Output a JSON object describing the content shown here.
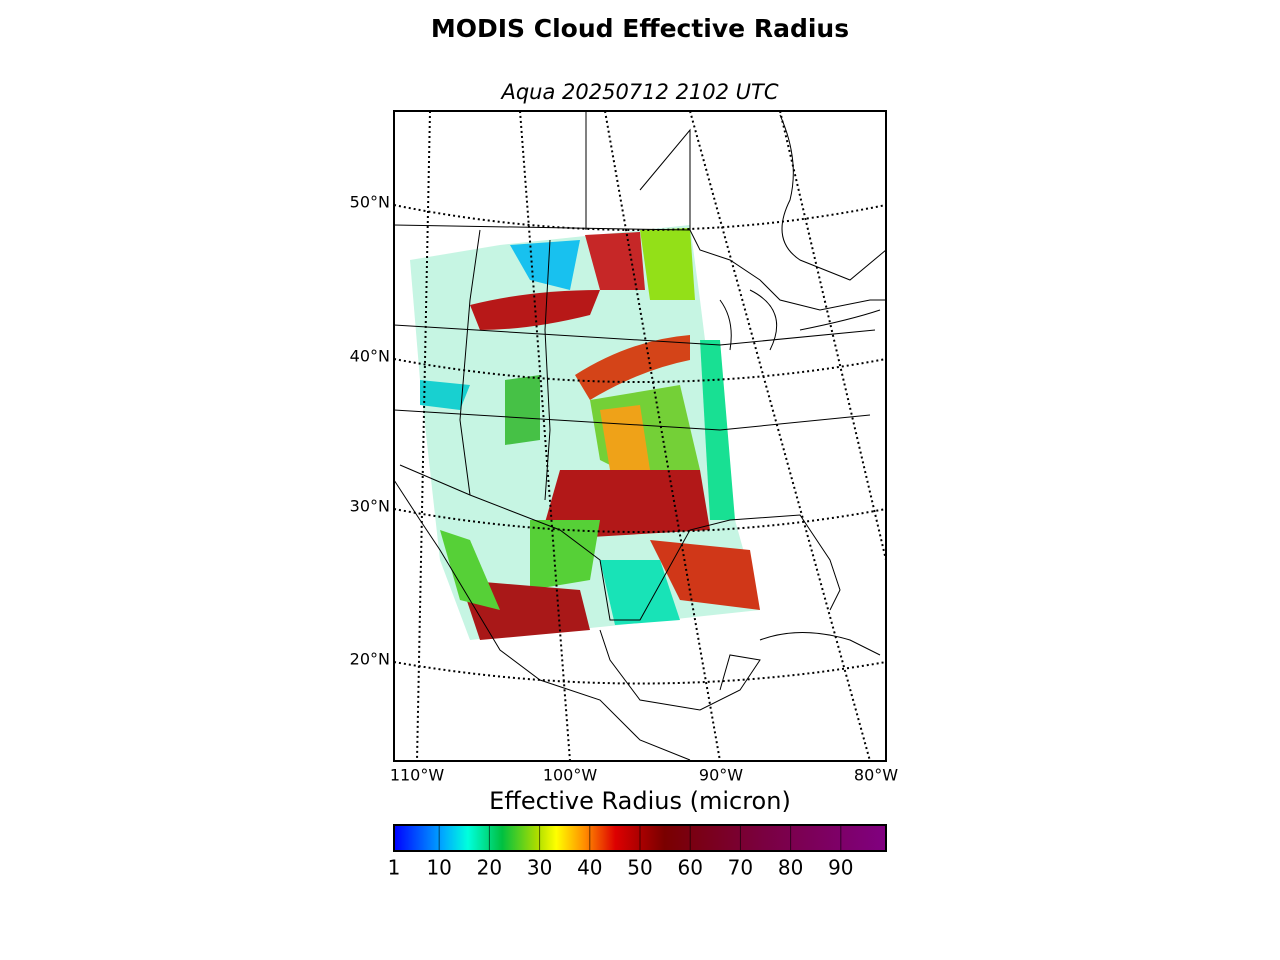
{
  "title": "MODIS Cloud Effective Radius",
  "subtitle": "Aqua 20250712 2102 UTC",
  "map": {
    "lat_labels": [
      "50°N",
      "40°N",
      "30°N",
      "20°N"
    ],
    "lon_labels": [
      "110°W",
      "100°W",
      "90°W",
      "80°W"
    ]
  },
  "colorbar": {
    "label": "Effective Radius (micron)",
    "range": [
      1,
      99
    ],
    "ticks": [
      1,
      10,
      20,
      30,
      40,
      50,
      60,
      70,
      80,
      90
    ]
  }
}
